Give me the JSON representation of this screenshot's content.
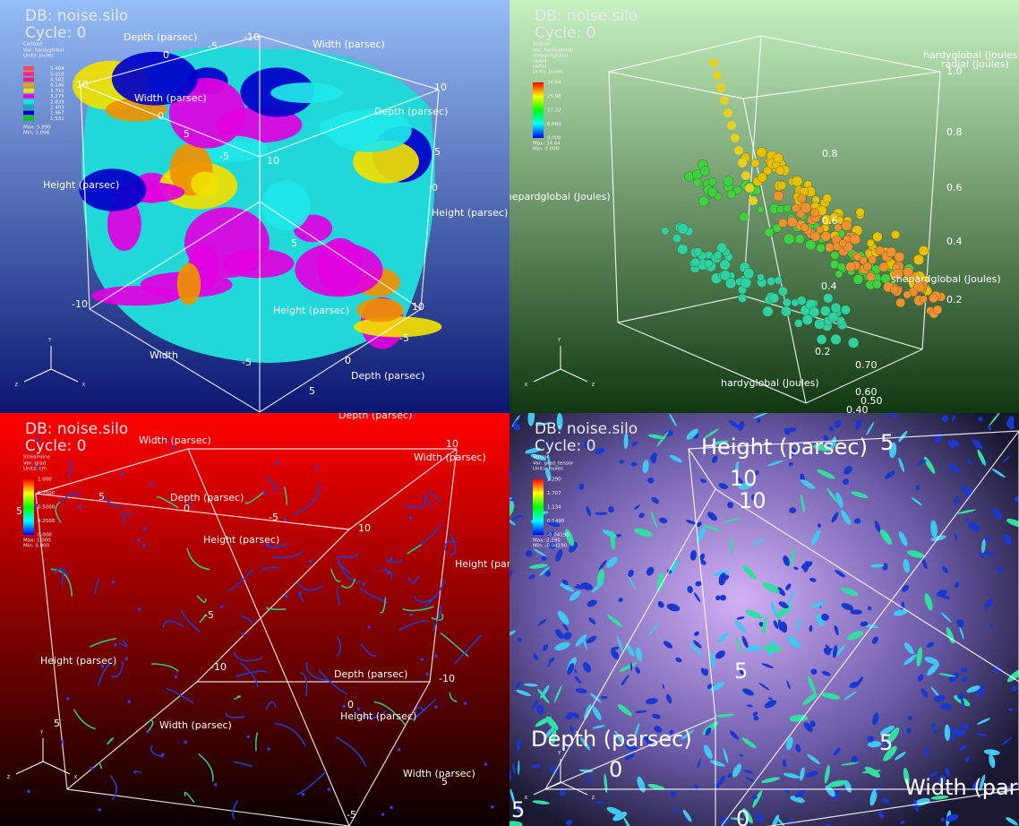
{
  "panels": [
    {
      "db": "DB: noise.silo",
      "cycle": "Cycle: 0",
      "legend": {
        "title": "Contour",
        "lines": [
          "Var: hardyglobal",
          "Units: Joules"
        ],
        "levels": [
          "5.464",
          "5.018",
          "4.582",
          "4.146",
          "3.711",
          "3.275",
          "2.839",
          "2.403",
          "1.967",
          "1.531"
        ],
        "colors": [
          "#ff4848",
          "#ff2c74",
          "#e0208c",
          "#f0a000",
          "#f4e400",
          "#e000e0",
          "#00e8e8",
          "#00b0b0",
          "#0000c8",
          "#00c800"
        ],
        "max": "Max: 5.890",
        "min": "Min: 1.096"
      },
      "labels": [
        "Depth (parsec)",
        "Width (parsec)",
        "Width (parsec)",
        "Depth (parsec)",
        "Height (parsec)",
        "Height (parsec)",
        "Height (parsec)",
        "Width",
        "Depth (parsec)"
      ],
      "ticks": [
        "-10",
        "-5",
        "0",
        "10",
        "10",
        "5",
        "0",
        "-5",
        "10",
        "5",
        "0",
        "5",
        "-10",
        "10",
        "-5",
        "0",
        "-5",
        "5"
      ],
      "triad": [
        "Y",
        "Z",
        "X"
      ]
    },
    {
      "db": "DB: noise.silo",
      "cycle": "Cycle: 0",
      "legend": {
        "title": "Scatter",
        "lines": [
          "Var: hardyglobal",
          "shepardglobal",
          "radial",
          "radial",
          "Units: Joules"
        ],
        "levels": [
          "34.64",
          "25.98",
          "17.32",
          "8.660",
          "0.000"
        ],
        "max": "Max: 34.64",
        "min": "Min: 0.000"
      },
      "labels": [
        "hardyglobal (Joules)",
        "radial (Joules)",
        "shepardglobal (Joules)",
        "hardyglobal (Joules)",
        "shepardglobal (Joules)"
      ],
      "ticks": [
        "0.8",
        "0.6",
        "0.4",
        "0.2",
        "1.0",
        "0.8",
        "0.6",
        "0.4",
        "0.2",
        "0.70",
        "0.60",
        "0.50",
        "0.40"
      ],
      "triad": [
        "Y",
        "X",
        "Z"
      ]
    },
    {
      "db": "DB: noise.silo",
      "cycle": "Cycle: 0",
      "legend": {
        "title": "Streamline",
        "lines": [
          "Var: grad",
          "Units: cm"
        ],
        "levels": [
          "1.000",
          "0.7500",
          "0.5000",
          "0.2500",
          "0.000"
        ],
        "max": "Max: 1.000",
        "min": "Min: 0.000"
      },
      "labels": [
        "Width (parsec)",
        "Depth (parsec)",
        "Width (parsec)",
        "Depth (parsec)",
        "Height (parsec)",
        "Height (parsec)",
        "Height (parsec)",
        "Depth (parsec)",
        "Height (parsec)",
        "Width (parsec)",
        "Width (parsec)"
      ],
      "ticks": [
        "5",
        "0",
        "-5",
        "10",
        "-5",
        "-10",
        "0",
        "-10",
        "5",
        "5",
        "-5",
        "10",
        "5"
      ],
      "triad": [
        "Y",
        "Z",
        "X"
      ]
    },
    {
      "db": "DB: noise.silo",
      "cycle": "Cycle: 0",
      "legend": {
        "title": "Tensor",
        "lines": [
          "Var: grad_tensor",
          "Units: Joules"
        ],
        "levels": [
          "2.290",
          "1.707",
          "1.134",
          "0.5490",
          "-0.04190"
        ],
        "max": "Max: 2.290",
        "min": "Min: -0.04190"
      },
      "labels": [
        "Height (parsec)",
        "Depth (parsec)",
        "Width (parse"
      ],
      "ticks": [
        "5",
        "10",
        "10",
        "5",
        "5",
        "0",
        "0",
        "5"
      ],
      "triad": [
        "Y",
        "X",
        "Z"
      ]
    }
  ]
}
